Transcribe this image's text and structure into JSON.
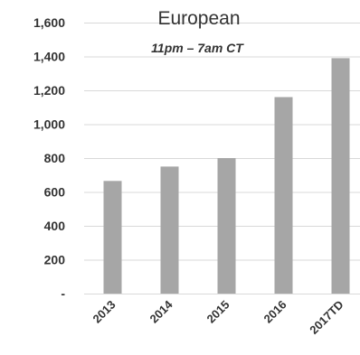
{
  "chart_data": {
    "type": "bar",
    "title": "European",
    "subtitle": "11pm – 7am CT",
    "categories": [
      "2013",
      "2014",
      "2015",
      "2016",
      "2017TD"
    ],
    "values": [
      665,
      750,
      800,
      1160,
      1390
    ],
    "ylim": [
      0,
      1600
    ],
    "ytick_step": 200,
    "ytick_labels": [
      "-",
      "200",
      "400",
      "600",
      "800",
      "1,000",
      "1,200",
      "1,400",
      "1,600"
    ],
    "grid": true,
    "bar_color": "#a6a6a6",
    "grid_color": "#d9d9d9",
    "text_color": "#333333"
  }
}
